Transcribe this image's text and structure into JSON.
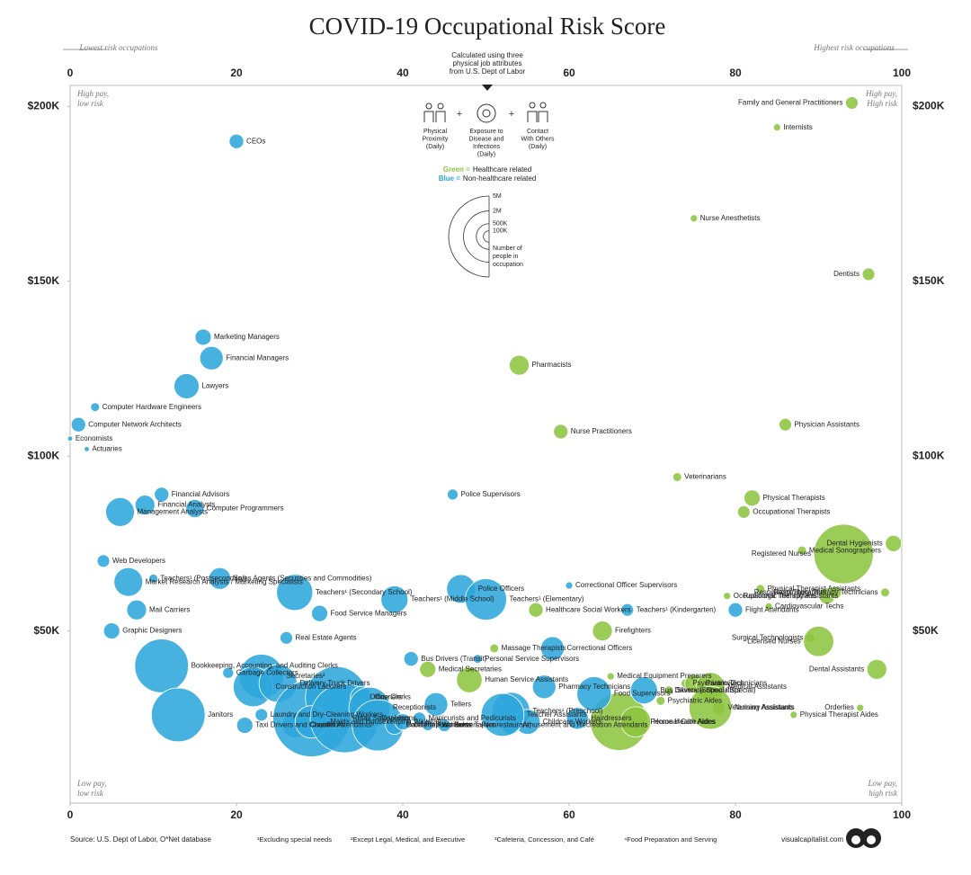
{
  "chart_data": {
    "type": "bubble",
    "title": "COVID-19 Occupational Risk Score",
    "subtitle": [
      "Calculated using three",
      "physical job attributes",
      "from U.S. Dept of Labor"
    ],
    "attributes": [
      [
        "Physical",
        "Proximity",
        "(Daily)"
      ],
      [
        "Exposure to",
        "Disease and",
        "Infections",
        "(Daily)"
      ],
      [
        "Contact",
        "With Others",
        "(Daily)"
      ]
    ],
    "xlim": [
      0,
      100
    ],
    "xticks": [
      0,
      20,
      40,
      60,
      80,
      100
    ],
    "ylim": [
      0,
      206000
    ],
    "yticks": [
      {
        "value": 50000,
        "label": "$50K"
      },
      {
        "value": 100000,
        "label": "$100K"
      },
      {
        "value": 150000,
        "label": "$150K"
      },
      {
        "value": 200000,
        "label": "$200K"
      }
    ],
    "x_left_note": "Lowest risk occupations",
    "x_right_note": "Highest risk occupations",
    "corner_notes": {
      "top_left": [
        "High pay,",
        "low risk"
      ],
      "top_right": [
        "High pay,",
        "High risk"
      ],
      "bottom_left": [
        "Low pay,",
        "low risk"
      ],
      "bottom_right": [
        "Low pay,",
        "high risk"
      ]
    },
    "size_legend": {
      "title": [
        "Number of",
        "people in",
        "occupation"
      ],
      "ticks": [
        {
          "value": 5000000,
          "label": "5M"
        },
        {
          "value": 2000000,
          "label": "2M"
        },
        {
          "value": 500000,
          "label": "500K"
        },
        {
          "value": 100000,
          "label": "100K"
        }
      ]
    },
    "series": [
      {
        "name": "Healthcare related",
        "color_label": "Green =",
        "color": "#8cc540",
        "labels": [
          "Family and General Practitioners",
          "Internists",
          "Nurse Anesthetists",
          "Dentists",
          "Pharmacists",
          "Nurse Practitioners",
          "Physician Assistants",
          "Veterinarians",
          "Physical Therapists",
          "Occupational Therapists",
          "Medical Sonographers",
          "Registered Nurses",
          "Dental Hygienists",
          "Occupational Therapy Assistants",
          "Physical Therapist Assistants",
          "Cardiovascular Techs",
          "Radiologic Technicians",
          "Respiratory Therapists",
          "Respiratory Therapy Technicians",
          "Healthcare Social Workers",
          "Firefighters",
          "Medical Equipment Preparers",
          "Surgical Technologists",
          "Licensed Nurses",
          "Dental Assistants",
          "Orderlies",
          "Physical Therapist Aides",
          "Psychiatric Technicians",
          "Paramedics",
          "Medical Assistants",
          "Veterinary Assistants",
          "Nursing Assistants",
          "Skincare Specialists",
          "Psychiatric Aides",
          "Personal Care Aides",
          "Home Health Aides",
          "Medical Secretaries",
          "Human Service Assistants",
          "Massage Therapists"
        ],
        "x": [
          94,
          85,
          75,
          96,
          54,
          59,
          86,
          73,
          82,
          81,
          88,
          93,
          99,
          79,
          83,
          84,
          91,
          92,
          98,
          56,
          64,
          65,
          89,
          90,
          97,
          95,
          87,
          74,
          75,
          77,
          78,
          77,
          72,
          71,
          66,
          68,
          43,
          48,
          51
        ],
        "values": [
          201000,
          194000,
          168000,
          152000,
          126000,
          107000,
          109000,
          94000,
          88000,
          84000,
          73000,
          72000,
          75000,
          60000,
          62000,
          57000,
          60000,
          61000,
          61000,
          56000,
          50000,
          37000,
          48000,
          47000,
          39000,
          28000,
          26000,
          35000,
          35000,
          34000,
          28000,
          28000,
          33000,
          30000,
          24000,
          24000,
          39000,
          36000,
          45000
        ],
        "sizes": [
          120000,
          40000,
          40000,
          120000,
          300000,
          160000,
          120000,
          60000,
          200000,
          120000,
          60000,
          2700000,
          200000,
          40000,
          60000,
          40000,
          200000,
          120000,
          60000,
          160000,
          300000,
          40000,
          60000,
          700000,
          300000,
          40000,
          40000,
          60000,
          250000,
          630000,
          120000,
          1400000,
          60000,
          60000,
          2500000,
          700000,
          200000,
          500000,
          60000
        ]
      },
      {
        "name": "Non-healthcare related",
        "color_label": "Blue =",
        "color": "#2ea6dc",
        "labels": [
          "CEOs",
          "Marketing Managers",
          "Financial Managers",
          "Lawyers",
          "Computer Hardware Engineers",
          "Computer Network Architects",
          "Economists",
          "Actuaries",
          "Financial Advisors",
          "Financial Analysts",
          "Management Analysts",
          "Computer Programmers",
          "Police Supervisors",
          "Web Developers",
          "Market Research Analysts / Marketing Specialists",
          "Teachers¹ (Postsecondary)",
          "Mail Carriers",
          "Graphic Designers",
          "Sales Agents (Securities and Commodities)",
          "Teachers¹ (Secondary School)",
          "Food Service Managers",
          "Teachers¹ (Middle School)",
          "Police Officers",
          "Teachers¹ (Elementary)",
          "Correctional Officer Supervisors",
          "Teachers¹ (Kindergarten)",
          "Flight Attendants",
          "Real Estate Agents",
          "Secretaries²",
          "Construction Laborers",
          "Delivery Truck Drivers",
          "Garbage Collectors",
          "Bookkeeping, Accounting, and Auditing Clerks",
          "Janitors",
          "Taxi Drivers and Chauffeurs",
          "Laundry and Dry-Cleaning Workers",
          "Counter Attendants³",
          "Retail Salespersons",
          "Office Clerks",
          "Maids and Housekeeping",
          "Cashiers",
          "Couriers",
          "Receptionists",
          "Food Prep Workers",
          "Cafeteria Attendants",
          "Bus Drivers (Transit)",
          "Tellers",
          "Manicurists and Pedicurists",
          "Waitstaff",
          "Ticket Takers",
          "Food Servers (Nonrestaurant)",
          "Personal Service Supervisors",
          "Teachers¹ (Preschool)",
          "Childcare Workers",
          "Amusement and Recreation Attendants",
          "Correctional Officers",
          "Food Supervisors⁴",
          "Pharmacy Technicians",
          "Hairdressers",
          "Bus Drivers (School / Special)",
          "Teacher Assistants"
        ],
        "x": [
          20,
          16,
          17,
          14,
          3,
          1,
          0,
          2,
          11,
          9,
          6,
          15,
          46,
          4,
          7,
          10,
          8,
          5,
          18,
          27,
          30,
          39,
          47,
          50,
          60,
          67,
          80,
          26,
          23,
          22,
          25,
          19,
          11,
          13,
          21,
          23,
          27,
          29,
          32,
          29,
          33,
          35,
          36,
          37,
          39,
          41,
          44,
          42,
          40,
          45,
          43,
          49,
          53,
          55,
          53,
          58,
          63,
          57,
          61,
          69,
          52
        ],
        "values": [
          190000,
          134000,
          128000,
          120000,
          114000,
          109000,
          105000,
          102000,
          89000,
          86000,
          84000,
          85000,
          89000,
          70000,
          64000,
          65000,
          56000,
          50000,
          65000,
          61000,
          55000,
          59000,
          62000,
          59000,
          63000,
          56000,
          56000,
          48000,
          37000,
          34000,
          35000,
          38000,
          40000,
          26000,
          23000,
          26000,
          23000,
          25000,
          31000,
          24000,
          25000,
          31000,
          28000,
          23000,
          23000,
          42000,
          29000,
          25000,
          24000,
          23000,
          23000,
          42000,
          27000,
          24000,
          23000,
          45000,
          32000,
          34000,
          25000,
          33000,
          26000
        ],
        "sizes": [
          160000,
          200000,
          420000,
          480000,
          60000,
          160000,
          20000,
          20000,
          160000,
          300000,
          630000,
          250000,
          90000,
          120000,
          630000,
          60000,
          300000,
          200000,
          360000,
          1000000,
          200000,
          560000,
          630000,
          1300000,
          40000,
          120000,
          160000,
          120000,
          1500000,
          1200000,
          1100000,
          90000,
          2200000,
          2200000,
          200000,
          120000,
          480000,
          4500000,
          2900000,
          800000,
          3600000,
          360000,
          1300000,
          2000000,
          250000,
          160000,
          420000,
          120000,
          200000,
          120000,
          90000,
          60000,
          1100000,
          480000,
          250000,
          420000,
          900000,
          420000,
          360000,
          560000,
          1400000
        ]
      }
    ],
    "source": "Source: U.S. Dept of Labor, O*Net database",
    "footnotes": [
      "¹Excluding special needs",
      "²Except Legal, Medical, and Executive",
      "³Cafeteria, Concession, and Café",
      "⁴Food Preparation and Serving"
    ],
    "credit": "visualcapitalist.com"
  }
}
